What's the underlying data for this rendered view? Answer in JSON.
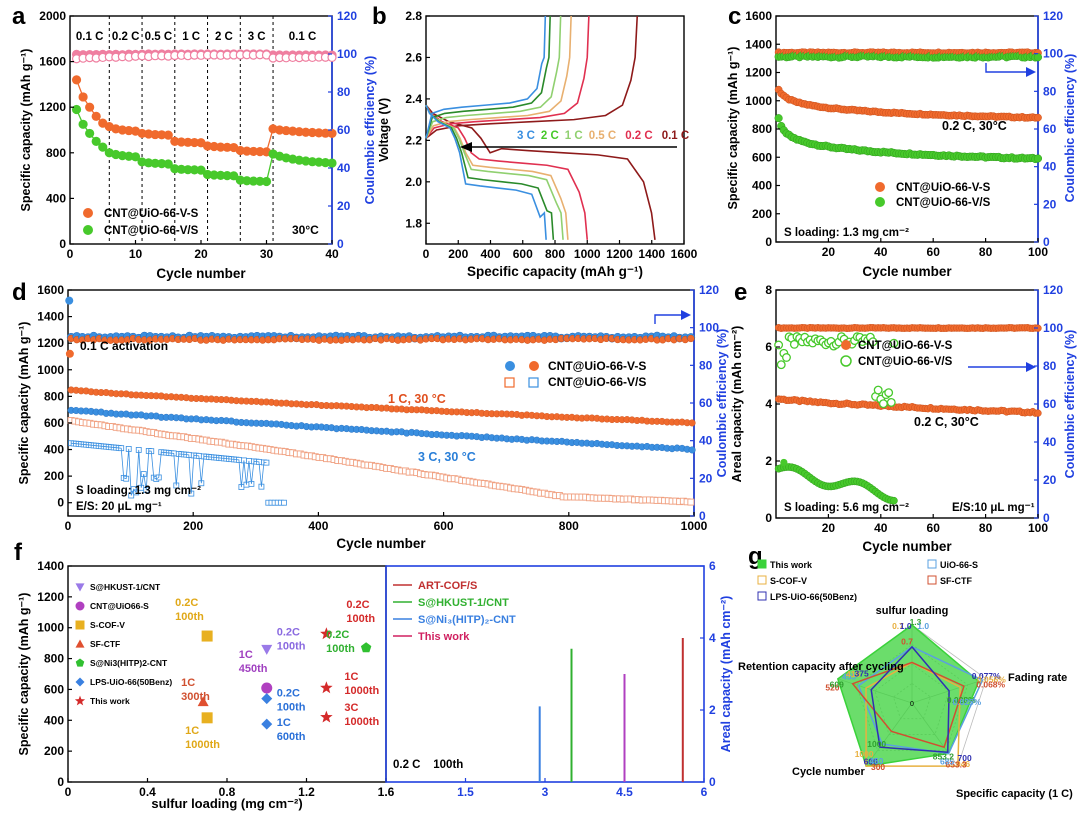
{
  "colors": {
    "orange": "#f06a2d",
    "green": "#47c92b",
    "blue": "#3a8fe0",
    "pink": "#ef7fa0",
    "axisBlue": "#2040e0",
    "dark": "#8e1a1a",
    "red": "#d42a2a",
    "purple": "#a050c8"
  },
  "chart_data": [
    {
      "id": "a",
      "type": "line",
      "panel_label": "a",
      "x": [
        1,
        2,
        3,
        4,
        5,
        6,
        7,
        8,
        9,
        10,
        11,
        12,
        13,
        14,
        15,
        16,
        17,
        18,
        19,
        20,
        21,
        22,
        23,
        24,
        25,
        26,
        27,
        28,
        29,
        30,
        31,
        32,
        33,
        34,
        35,
        36,
        37,
        38,
        39,
        40
      ],
      "series": [
        {
          "name": "CNT@UiO-66-V-S",
          "axis": "left",
          "values": [
            1440,
            1290,
            1200,
            1120,
            1060,
            1030,
            1010,
            1000,
            995,
            990,
            970,
            965,
            960,
            958,
            955,
            900,
            895,
            892,
            890,
            888,
            860,
            855,
            850,
            848,
            846,
            820,
            815,
            812,
            810,
            808,
            1010,
            1000,
            995,
            990,
            985,
            980,
            978,
            975,
            972,
            970
          ]
        },
        {
          "name": "CNT@UiO-66-V/S",
          "axis": "left",
          "values": [
            1180,
            1050,
            970,
            900,
            850,
            800,
            785,
            775,
            770,
            765,
            720,
            712,
            708,
            705,
            702,
            660,
            655,
            652,
            650,
            648,
            610,
            605,
            602,
            600,
            598,
            560,
            555,
            552,
            550,
            548,
            790,
            770,
            755,
            745,
            735,
            728,
            722,
            718,
            714,
            710
          ]
        },
        {
          "name": "CE-V-S",
          "axis": "right",
          "values": [
            99.8,
            99.6,
            99.7,
            99.7,
            99.8,
            99.7,
            99.8,
            99.6,
            99.9,
            99.8,
            99.9,
            100,
            99.9,
            100,
            99.9,
            100,
            100,
            99.9,
            100,
            100,
            100,
            100,
            99.9,
            100,
            100,
            100,
            100,
            100,
            100,
            100,
            99.5,
            99.5,
            99.4,
            99.5,
            99.4,
            99.5,
            99.4,
            99.4,
            99.5,
            99.4
          ]
        },
        {
          "name": "CE-V/S",
          "axis": "right",
          "values": [
            97.5,
            97.8,
            98.1,
            97.9,
            98.2,
            98.5,
            98.3,
            98.6,
            98.4,
            98.8,
            99,
            98.7,
            99.1,
            99,
            98.9,
            99.2,
            99.3,
            99.1,
            99.4,
            99.3,
            99.4,
            99.5,
            99.3,
            99.4,
            99.5,
            99.5,
            99.6,
            99.4,
            99.6,
            99.5,
            97.9,
            98.1,
            98,
            98.2,
            98.1,
            98.3,
            98.2,
            98.4,
            98.3,
            98.2
          ]
        }
      ],
      "ylim": [
        0,
        2000
      ],
      "y2lim": [
        0,
        120
      ],
      "xlim": [
        0,
        40
      ],
      "xticks": [
        0,
        10,
        20,
        30,
        40
      ],
      "yticks": [
        0,
        400,
        800,
        1200,
        1600,
        2000
      ],
      "y2ticks": [
        0,
        20,
        40,
        60,
        80,
        100,
        120
      ],
      "xlabel": "Cycle number",
      "ylabel": "Specific capacity (mAh g⁻¹)",
      "y2label": "Coulombic efficiency (%)",
      "dividers": [
        6,
        11,
        16,
        21,
        26,
        31
      ],
      "rate_labels": [
        {
          "text": "0.1 C",
          "x": 3
        },
        {
          "text": "0.2 C",
          "x": 8.5
        },
        {
          "text": "0.5 C",
          "x": 13.5
        },
        {
          "text": "1 C",
          "x": 18.5
        },
        {
          "text": "2 C",
          "x": 23.5
        },
        {
          "text": "3 C",
          "x": 28.5
        },
        {
          "text": "0.1 C",
          "x": 35.5
        }
      ],
      "legend": [
        "CNT@UiO-66-V-S",
        "CNT@UiO-66-V/S"
      ],
      "note": "30°C"
    },
    {
      "id": "b",
      "type": "line",
      "panel_label": "b",
      "xlabel": "Specific capacity (mAh g⁻¹)",
      "ylabel": "Voltage (V)",
      "xlim": [
        0,
        1600
      ],
      "ylim": [
        1.7,
        2.8
      ],
      "xticks": [
        0,
        200,
        400,
        600,
        800,
        1000,
        1200,
        1400,
        1600
      ],
      "yticks": [
        1.8,
        2.0,
        2.2,
        2.4,
        2.6,
        2.8
      ],
      "rate_legend": [
        {
          "text": "3 C",
          "color": "#3a8fe0"
        },
        {
          "text": "2 C",
          "color": "#47c92b"
        },
        {
          "text": "1 C",
          "color": "#90d070"
        },
        {
          "text": "0.5 C",
          "color": "#e8b070"
        },
        {
          "text": "0.2 C",
          "color": "#e03050"
        },
        {
          "text": "0.1 C",
          "color": "#8e1a1a"
        }
      ],
      "curves": [
        {
          "name": "0.1 C",
          "color": "#8e1a1a",
          "capacity": 1420,
          "charge_capacity": 1310,
          "plateau_low": 2.15,
          "plateau_high": 2.29
        },
        {
          "name": "0.2 C",
          "color": "#e03050",
          "capacity": 1000,
          "charge_capacity": 1010,
          "plateau_low": 2.1,
          "plateau_high": 2.3
        },
        {
          "name": "0.5 C",
          "color": "#e8b070",
          "capacity": 880,
          "charge_capacity": 900,
          "plateau_low": 2.07,
          "plateau_high": 2.31
        },
        {
          "name": "1 C",
          "color": "#90d070",
          "capacity": 850,
          "charge_capacity": 835,
          "plateau_low": 2.05,
          "plateau_high": 2.33
        },
        {
          "name": "2 C",
          "color": "#2a8a2a",
          "capacity": 790,
          "charge_capacity": 770,
          "plateau_low": 2.01,
          "plateau_high": 2.35
        },
        {
          "name": "3 C",
          "color": "#3a8fe0",
          "capacity": 745,
          "charge_capacity": 740,
          "plateau_low": 1.98,
          "plateau_high": 2.37
        }
      ]
    },
    {
      "id": "c",
      "type": "line",
      "panel_label": "c",
      "xlabel": "Cycle number",
      "ylabel": "Specific capacity (mAh g⁻¹)",
      "y2label": "Coulombic efficiency (%)",
      "xlim": [
        0,
        100
      ],
      "ylim": [
        0,
        1600
      ],
      "y2lim": [
        0,
        120
      ],
      "xticks": [
        20,
        40,
        60,
        80,
        100
      ],
      "yticks": [
        0,
        200,
        400,
        600,
        800,
        1000,
        1200,
        1400,
        1600
      ],
      "y2ticks": [
        0,
        20,
        40,
        60,
        80,
        100,
        120
      ],
      "series": [
        {
          "name": "CNT@UiO-66-V-S",
          "start": 1080,
          "end": 880
        },
        {
          "name": "CNT@UiO-66-V/S",
          "start": 880,
          "end": 590
        },
        {
          "name": "CE-V-S",
          "ce": 100.5
        },
        {
          "name": "CE-V/S",
          "ce": 98.5
        }
      ],
      "annotation": "0.2 C, 30°C",
      "loading": "S loading: 1.3 mg cm⁻²",
      "legend": [
        "CNT@UiO-66-V-S",
        "CNT@UiO-66-V/S"
      ]
    },
    {
      "id": "d",
      "type": "line",
      "panel_label": "d",
      "xlabel": "Cycle number",
      "ylabel": "Specific capacity (mAh g⁻¹)",
      "y2label": "Coulombic efficiency (%)",
      "xlim": [
        0,
        1000
      ],
      "ylim": [
        -100,
        1600
      ],
      "y2lim": [
        0,
        120
      ],
      "xticks": [
        0,
        200,
        400,
        600,
        800,
        1000
      ],
      "yticks": [
        0,
        200,
        400,
        600,
        800,
        1000,
        1200,
        1400,
        1600
      ],
      "y2ticks": [
        0,
        20,
        40,
        60,
        80,
        100,
        120
      ],
      "series": [
        {
          "name": "CNT@UiO-66-V-S 1C",
          "start": 850,
          "end": 600
        },
        {
          "name": "CNT@UiO-66-V-S 3C",
          "start": 700,
          "end": 400
        },
        {
          "name": "CNT@UiO-66-V/S 1C",
          "start": 620,
          "end": 0
        },
        {
          "name": "CNT@UiO-66-V/S 3C",
          "start": 450,
          "end": 0
        },
        {
          "name": "CE V-S",
          "ce": 95
        },
        {
          "name": "CE V/S",
          "ce": 95
        }
      ],
      "annotations": [
        "0.1 C activation",
        "1 C, 30 °C",
        "3 C, 30 °C"
      ],
      "loading": "S loading: 1.3 mg cm⁻²",
      "es": "E/S: 20 μL mg⁻¹",
      "legend": [
        "CNT@UiO-66-V-S",
        "CNT@UiO-66-V/S"
      ]
    },
    {
      "id": "e",
      "type": "line",
      "panel_label": "e",
      "xlabel": "Cycle number",
      "ylabel": "Areal capacity (mAh cm⁻²)",
      "y2label": "Coulombic efficiency (%)",
      "xlim": [
        0,
        100
      ],
      "ylim": [
        0,
        8
      ],
      "y2lim": [
        0,
        120
      ],
      "xticks": [
        20,
        40,
        60,
        80,
        100
      ],
      "yticks": [
        0,
        2,
        4,
        6,
        8
      ],
      "y2ticks": [
        0,
        20,
        40,
        60,
        80,
        100,
        120
      ],
      "series": [
        {
          "name": "CNT@UiO-66-V-S",
          "start": 4.2,
          "end": 3.7
        },
        {
          "name": "CNT@UiO-66-V/S",
          "start": 1.7,
          "end": 0.8
        },
        {
          "name": "CE-V-S",
          "ce": 100
        },
        {
          "name": "CE-V/S",
          "ce": 93
        }
      ],
      "annotation": "0.2 C, 30°C",
      "loading": "S loading: 5.6 mg cm⁻²",
      "es": "E/S:10 μL mg⁻¹",
      "legend": [
        "CNT@UiO-66-V-S",
        "CNT@UiO-66-V/S"
      ]
    },
    {
      "id": "f",
      "type": "scatter",
      "panel_label": "f",
      "xlabel": "sulfur loading (mg cm⁻²)",
      "ylabel": "Specific capacity (mAh g⁻¹)",
      "y2label": "Areal capacity (mAh cm⁻²)",
      "xlim": [
        0,
        1.6
      ],
      "ylim": [
        0,
        1400
      ],
      "x2lim": [
        0,
        6
      ],
      "y2lim": [
        0,
        6
      ],
      "xticks": [
        0,
        0.4,
        0.8,
        1.2,
        1.6
      ],
      "yticks": [
        0,
        200,
        400,
        600,
        800,
        1000,
        1200,
        1400
      ],
      "x2ticks": [
        0,
        1.5,
        3,
        4.5,
        6
      ],
      "y2ticks": [
        0,
        2,
        4,
        6
      ],
      "legend": [
        {
          "name": "S@HKUST-1/CNT",
          "marker": "triangle-down",
          "color": "#9a7ae8"
        },
        {
          "name": "CNT@UiO66-S",
          "marker": "circle",
          "color": "#b040c0"
        },
        {
          "name": "S-COF-V",
          "marker": "square",
          "color": "#e8b020"
        },
        {
          "name": "SF-CTF",
          "marker": "triangle-up",
          "color": "#e05030"
        },
        {
          "name": "S@Ni3(HITP)2-CNT",
          "marker": "pentagon",
          "color": "#30c030"
        },
        {
          "name": "LPS-UiO-66(50Benz)",
          "marker": "diamond",
          "color": "#3a80e0"
        },
        {
          "name": "This work",
          "marker": "star",
          "color": "#d42a2a"
        }
      ],
      "points": [
        {
          "series": "S-COF-V",
          "x": 0.7,
          "y": 946,
          "label": "0.2C\n100th"
        },
        {
          "series": "SF-CTF",
          "x": 0.68,
          "y": 520,
          "label": "1C\n300th"
        },
        {
          "series": "S-COF-V",
          "x": 0.7,
          "y": 416,
          "label": "1C\n1000th"
        },
        {
          "series": "S@HKUST-1/CNT",
          "x": 1.0,
          "y": 860,
          "label": "0.2C\n100th"
        },
        {
          "series": "CNT@UiO66-S",
          "x": 1.0,
          "y": 609,
          "label": "1C\n450th"
        },
        {
          "series": "LPS-UiO-66(50Benz)",
          "x": 1.0,
          "y": 540,
          "label": "0.2C\n100th"
        },
        {
          "series": "LPS-UiO-66(50Benz)",
          "x": 1.0,
          "y": 375,
          "label": "1C\n600th"
        },
        {
          "series": "This work",
          "x": 1.3,
          "y": 960,
          "label": "0.2C\n100th"
        },
        {
          "series": "S@Ni3(HITP)2-CNT",
          "x": 1.5,
          "y": 870,
          "label": "0.2C\n100th"
        },
        {
          "series": "This work",
          "x": 1.3,
          "y": 610,
          "label": "1C\n1000th"
        },
        {
          "series": "This work",
          "x": 1.3,
          "y": 420,
          "label": "3C\n1000th"
        }
      ],
      "areal_legend": [
        {
          "name": "ART-COF/S",
          "color": "#c03030"
        },
        {
          "name": "S@HKUST-1/CNT",
          "color": "#30b030"
        },
        {
          "name": "S@Ni₃(HITP)₂-CNT",
          "color": "#3a80e0"
        },
        {
          "name": "This work",
          "color": "#d02060"
        }
      ],
      "areal_bars": [
        {
          "loading": 2.9,
          "value": 2.1,
          "color": "#3a80e0"
        },
        {
          "loading": 3.5,
          "value": 3.7,
          "color": "#30b030"
        },
        {
          "loading": 4.5,
          "value": 3.0,
          "color": "#b040c0"
        },
        {
          "loading": 5.6,
          "value": 4.0,
          "color": "#c03030"
        }
      ],
      "areal_note": "0.2 C    100th"
    },
    {
      "id": "g",
      "type": "radar",
      "panel_label": "g",
      "axes": [
        "sulfur loading",
        "Fading rate",
        "Specific capacity (1 C)",
        "Cycle number",
        "Retention capacity after cycling"
      ],
      "legend": [
        {
          "name": "This work",
          "color": "#3ad23a",
          "fill": true
        },
        {
          "name": "UiO-66-S",
          "color": "#5aa0e0"
        },
        {
          "name": "S-COF-V",
          "color": "#e8b040"
        },
        {
          "name": "SF-CTF",
          "color": "#d05030"
        },
        {
          "name": "LPS-UiO-66(50Benz)",
          "color": "#3030b0"
        }
      ],
      "value_labels": [
        {
          "text": "0.7",
          "color": "#e8b040",
          "axis": 0,
          "r": 0.95,
          "side": -1
        },
        {
          "text": "1.0",
          "color": "#3030b0",
          "axis": 0,
          "r": 0.95,
          "side": -0.45
        },
        {
          "text": "1.3",
          "color": "#30a030",
          "axis": 0,
          "r": 1.0,
          "side": 0.25
        },
        {
          "text": "0.7",
          "color": "#d05030",
          "axis": 0,
          "r": 0.75,
          "side": -0.35
        },
        {
          "text": "1.0",
          "color": "#5aa0e0",
          "axis": 0,
          "r": 0.95,
          "side": 0.8
        },
        {
          "text": "0.077%",
          "color": "#3030b0",
          "axis": 1,
          "r": 1.0,
          "side": 0
        },
        {
          "text": "0.056%",
          "color": "#e8b040",
          "axis": 1,
          "r": 1.05,
          "side": 0.35
        },
        {
          "text": "0.068%",
          "color": "#d05030",
          "axis": 1,
          "r": 1.02,
          "side": 0.7
        },
        {
          "text": "0.028%",
          "color": "#30a030",
          "axis": 1,
          "r": 0.6,
          "side": 1.1
        },
        {
          "text": "0.025%",
          "color": "#5aa0e0",
          "axis": 1,
          "r": 0.66,
          "side": 1.35
        },
        {
          "text": "700",
          "color": "#3030b0",
          "axis": 2,
          "r": 1.0,
          "side": -0.6
        },
        {
          "text": "946",
          "color": "#e8b040",
          "axis": 2,
          "r": 1.05,
          "side": -0.25
        },
        {
          "text": "653.3",
          "color": "#d05030",
          "axis": 2,
          "r": 1.0,
          "side": 0.15
        },
        {
          "text": "685",
          "color": "#5aa0e0",
          "axis": 2,
          "r": 0.9,
          "side": 0.55
        },
        {
          "text": "853.2",
          "color": "#30a030",
          "axis": 2,
          "r": 0.82,
          "side": 0.55
        },
        {
          "text": "1000",
          "color": "#30a030",
          "axis": 3,
          "r": 0.72,
          "side": 0.2
        },
        {
          "text": "1000",
          "color": "#e8b040",
          "axis": 3,
          "r": 0.92,
          "side": 0.5
        },
        {
          "text": "600",
          "color": "#3030b0",
          "axis": 3,
          "r": 0.95,
          "side": -0.2
        },
        {
          "text": "450",
          "color": "#5aa0e0",
          "axis": 3,
          "r": 0.9,
          "side": -0.5
        },
        {
          "text": "300",
          "color": "#d05030",
          "axis": 3,
          "r": 0.95,
          "side": -0.85
        },
        {
          "text": "520",
          "color": "#d05030",
          "axis": 4,
          "r": 1.02,
          "side": -0.9
        },
        {
          "text": "609",
          "color": "#30a030",
          "axis": 4,
          "r": 0.98,
          "side": -0.6
        },
        {
          "text": "455",
          "color": "#5aa0e0",
          "axis": 4,
          "r": 0.86,
          "side": 0.2
        },
        {
          "text": "416",
          "color": "#e8b040",
          "axis": 4,
          "r": 0.82,
          "side": 0.45
        },
        {
          "text": "375",
          "color": "#3030b0",
          "axis": 4,
          "r": 0.72,
          "side": 0.7
        }
      ],
      "center_label": "0"
    }
  ]
}
